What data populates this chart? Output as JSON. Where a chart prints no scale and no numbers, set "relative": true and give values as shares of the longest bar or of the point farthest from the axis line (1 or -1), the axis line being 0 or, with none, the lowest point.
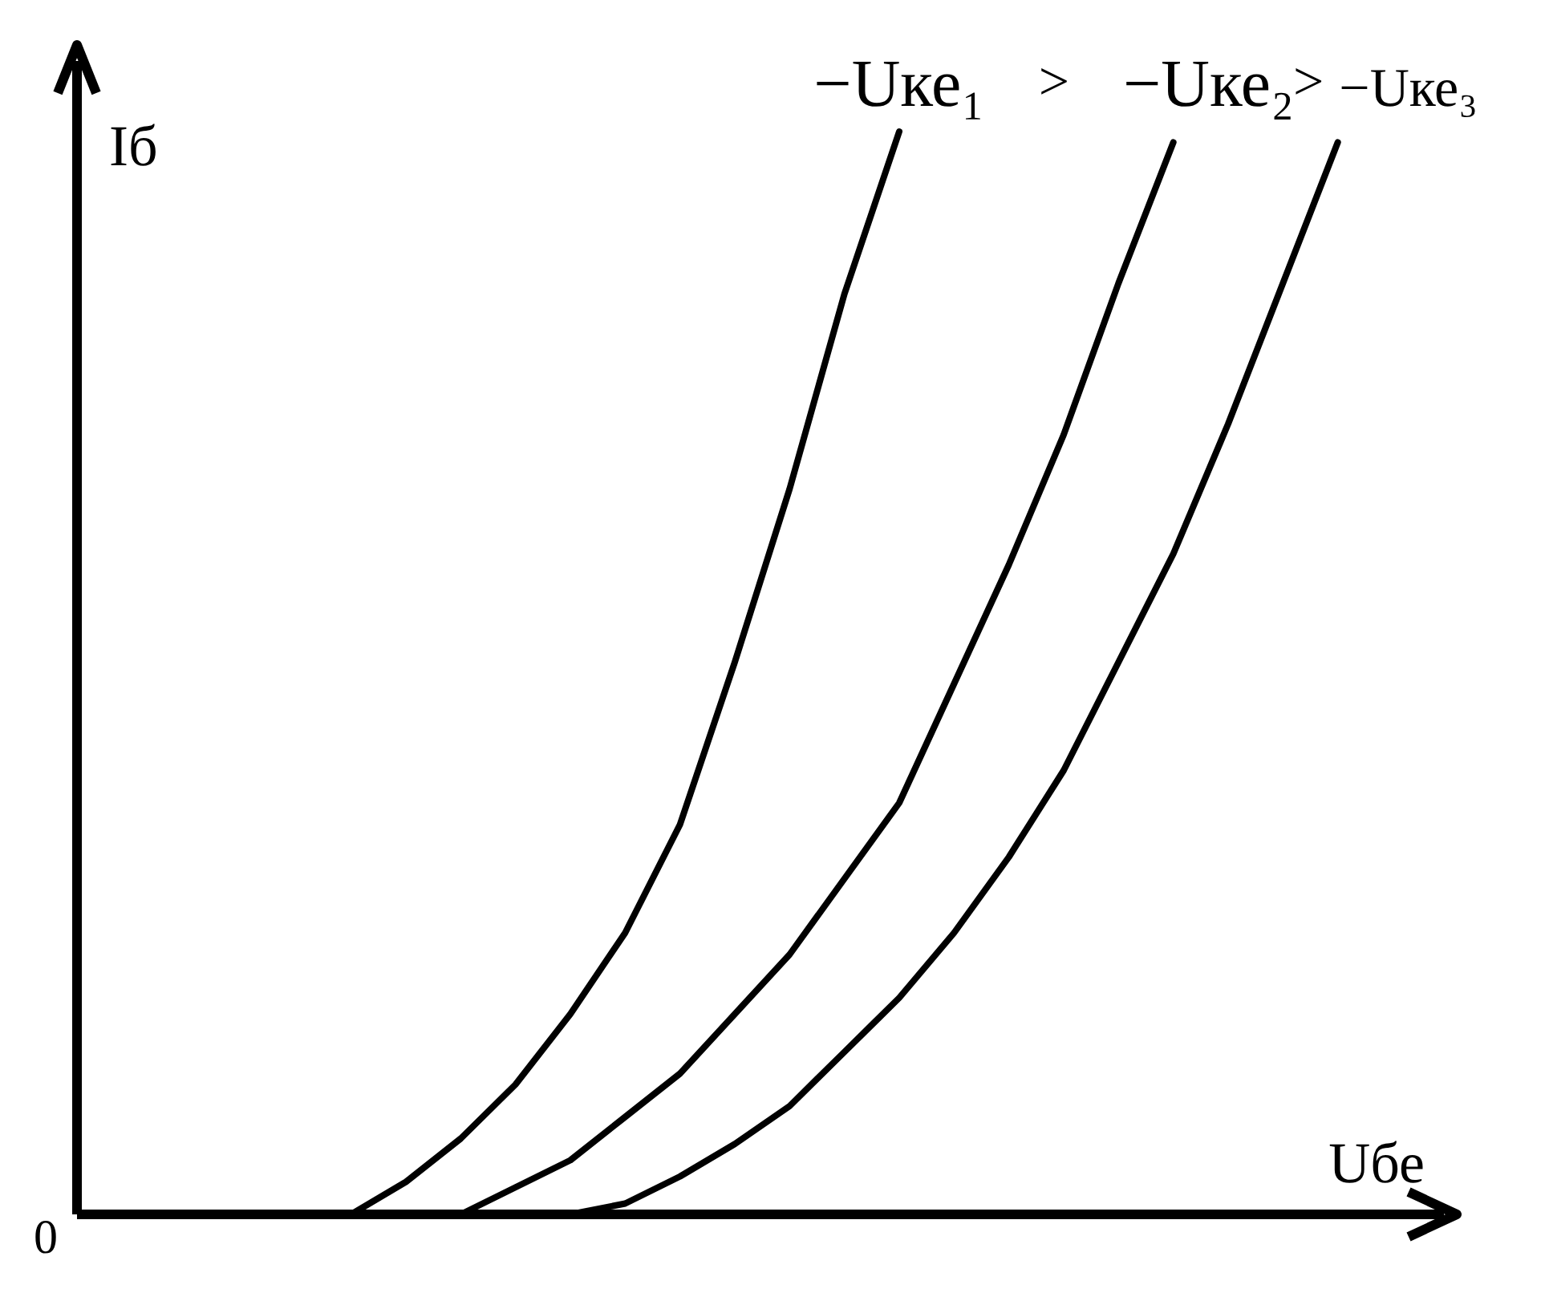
{
  "chart_data": {
    "type": "line",
    "relative": true,
    "xlabel": "Uбе",
    "ylabel": "Iб",
    "legend": false,
    "annotations": [
      "0",
      ">",
      ">"
    ],
    "categories": [
      null,
      null,
      null,
      null,
      null,
      null,
      null,
      null,
      null,
      null,
      null,
      null,
      null,
      null,
      null,
      null,
      null,
      null,
      null,
      null,
      null,
      null,
      null,
      null,
      null
    ],
    "series": [
      {
        "name": "−Uке₁",
        "color": "#000000",
        "values": [
          null,
          null,
          null,
          null,
          null,
          0,
          0.03,
          0.07,
          0.12,
          0.185,
          0.26,
          0.36,
          0.51,
          0.67,
          0.85,
          1.0,
          null,
          null,
          null,
          null,
          null,
          null,
          null,
          null,
          null
        ]
      },
      {
        "name": "−Uке₂",
        "color": "#000000",
        "values": [
          null,
          null,
          null,
          null,
          null,
          null,
          null,
          0,
          0.025,
          0.05,
          0.09,
          0.13,
          0.185,
          0.24,
          0.31,
          0.38,
          0.49,
          0.6,
          0.72,
          0.86,
          0.99,
          null,
          null,
          null,
          null
        ]
      },
      {
        "name": "−Uке₃",
        "color": "#000000",
        "values": [
          null,
          null,
          null,
          null,
          null,
          null,
          null,
          null,
          null,
          0,
          0.01,
          0.035,
          0.065,
          0.1,
          0.15,
          0.2,
          0.26,
          0.33,
          0.41,
          0.51,
          0.61,
          0.73,
          0.86,
          0.99,
          null
        ]
      }
    ]
  }
}
